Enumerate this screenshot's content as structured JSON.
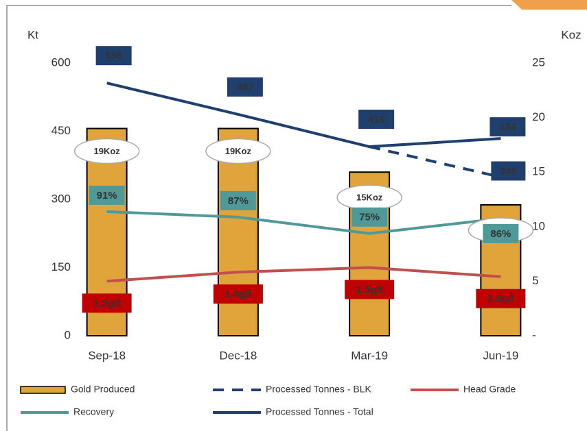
{
  "chart_data": {
    "type": "combo",
    "y_label": "Kt",
    "y2_label": "Koz",
    "categories": [
      "Sep-18",
      "Dec-18",
      "Mar-19",
      "Jun-19"
    ],
    "ylim": [
      0,
      600
    ],
    "yticks": [
      0,
      150,
      300,
      450,
      600
    ],
    "y2lim": [
      0,
      25
    ],
    "y2ticks": [
      {
        "value": 0,
        "label": "-"
      },
      5,
      10,
      15,
      20,
      25
    ],
    "y3lim": [
      0,
      200
    ],
    "y4lim": [
      0,
      6
    ],
    "series": [
      {
        "name": "Gold Produced",
        "type": "bar",
        "axis": "y2",
        "color": "#e0a43a",
        "values": [
          19,
          19,
          15,
          12
        ],
        "value_labels": [
          "19Koz",
          "19Koz",
          "15Koz",
          "12Koz"
        ]
      },
      {
        "name": "Processed Tonnes - BLK",
        "type": "line",
        "axis": "y",
        "dashed": true,
        "color": "#1f3f6e",
        "values": [
          null,
          null,
          416,
          349
        ],
        "value_labels": [
          null,
          null,
          null,
          "349"
        ]
      },
      {
        "name": "Head Grade",
        "type": "line",
        "axis": "y4",
        "color": "#c0504d",
        "values": [
          1.2,
          1.4,
          1.5,
          1.3
        ],
        "value_labels": [
          "1.2g/t",
          "1.4g/t",
          "1.5g/t",
          "1.3g/t"
        ]
      },
      {
        "name": "Recovery",
        "type": "line",
        "axis": "y3",
        "color": "#4f9a98",
        "values": [
          91,
          87,
          75,
          86
        ],
        "value_labels": [
          "91%",
          "87%",
          "75%",
          "86%"
        ]
      },
      {
        "name": "Processed Tonnes - Total",
        "type": "line",
        "axis": "y",
        "color": "#1f3f6e",
        "values": [
          556,
          487,
          416,
          434
        ]
      }
    ]
  }
}
